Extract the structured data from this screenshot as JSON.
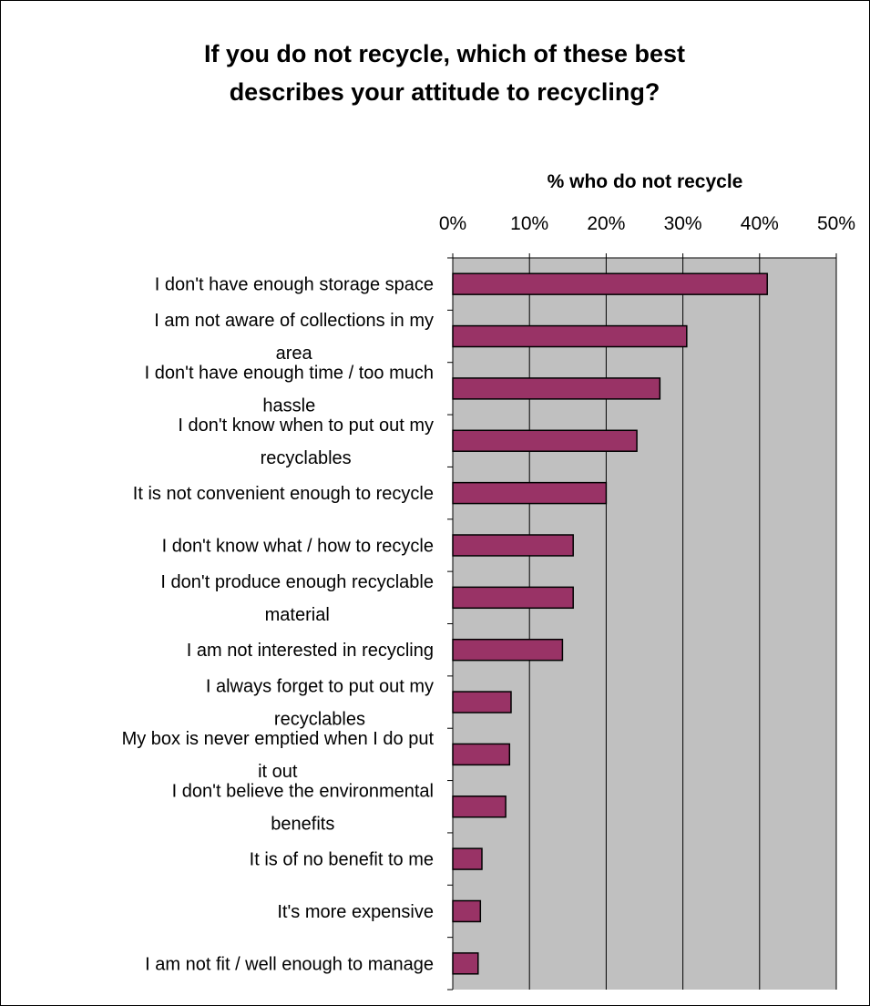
{
  "chart_data": {
    "type": "bar",
    "orientation": "horizontal",
    "title": "If you do not recycle, which of these best describes your attitude to recycling?",
    "title_lines": [
      "If you do not recycle, which of these best",
      "describes your attitude to recycling?"
    ],
    "xlabel": "% who do not recycle",
    "ylabel": "",
    "xlim": [
      0,
      50
    ],
    "tick_values": [
      0,
      10,
      20,
      30,
      40,
      50
    ],
    "tick_labels": [
      "0%",
      "10%",
      "20%",
      "30%",
      "40%",
      "50%"
    ],
    "x_axis_position": "top",
    "grid": true,
    "legend": "none",
    "colors": {
      "bar": "#993366",
      "plot_background": "#c0c0c0",
      "bar_border": "#000000"
    },
    "categories": [
      "I don't have enough storage space",
      "I am not aware of collections in my area",
      "I don't have enough time / too much hassle",
      "I don't know when to put out my recyclables",
      "It is not convenient enough to recycle",
      "I don't know what / how to recycle",
      "I don't produce enough recyclable material",
      "I am not interested in recycling",
      "I always forget to put out my recyclables",
      "My box is never emptied when I do put it out",
      "I don't believe the environmental benefits",
      "It is of no benefit to me",
      "It's more expensive",
      "I am not fit / well enough to manage"
    ],
    "category_lines": [
      [
        "I don't have enough storage space"
      ],
      [
        "I am not aware of collections in my",
        "area"
      ],
      [
        "I don't have enough time / too much",
        "hassle"
      ],
      [
        "I don't know when to put out my",
        "recyclables"
      ],
      [
        "It is not convenient enough to recycle"
      ],
      [
        "I don't know what / how to recycle"
      ],
      [
        "I don't produce enough recyclable",
        "material"
      ],
      [
        "I am not interested in recycling"
      ],
      [
        "I always forget to put out my",
        "recyclables"
      ],
      [
        "My box is never emptied when I do put",
        "it out"
      ],
      [
        "I don't believe the environmental",
        "benefits"
      ],
      [
        "It is of no benefit to me"
      ],
      [
        "It's more expensive"
      ],
      [
        "I am not fit / well enough to manage"
      ]
    ],
    "values": [
      41,
      30.5,
      27,
      24,
      20,
      15.7,
      15.7,
      14.3,
      7.6,
      7.4,
      6.9,
      3.8,
      3.6,
      3.3
    ]
  }
}
